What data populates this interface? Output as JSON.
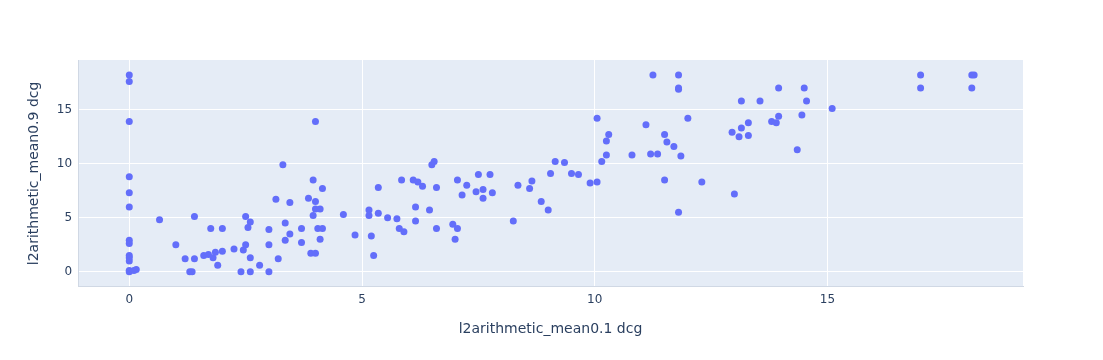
{
  "chart_data": {
    "type": "scatter",
    "x_label": "l2arithmetic_mean0.1 dcg",
    "y_label": "l2arithmetic_mean0.9 dcg",
    "color": "#636efa",
    "marker": "circle",
    "grid": true,
    "xlim": [
      -1.1,
      19.2
    ],
    "ylim": [
      -1.4,
      19.6
    ],
    "xticks": [
      0,
      5,
      10,
      15
    ],
    "yticks": [
      0,
      5,
      10,
      15
    ],
    "x": [
      0,
      0,
      0,
      0,
      0,
      0,
      0,
      0,
      0,
      0,
      0,
      0,
      0,
      0.15,
      0.1,
      0.65,
      1.0,
      1.2,
      1.3,
      1.35,
      1.4,
      1.4,
      1.6,
      1.7,
      1.75,
      1.8,
      1.85,
      1.9,
      2.0,
      2.0,
      2.25,
      2.4,
      2.45,
      2.5,
      2.5,
      2.55,
      2.6,
      2.6,
      2.6,
      2.8,
      3.0,
      3.0,
      3.0,
      3.15,
      3.2,
      3.3,
      3.35,
      3.35,
      3.45,
      3.45,
      3.7,
      3.7,
      3.85,
      3.9,
      3.95,
      3.95,
      4.0,
      4.0,
      4.0,
      4.0,
      4.05,
      4.1,
      4.1,
      4.15,
      4.15,
      4.6,
      4.85,
      5.15,
      5.15,
      5.2,
      5.25,
      5.35,
      5.35,
      5.55,
      5.75,
      5.8,
      5.85,
      5.9,
      6.1,
      6.15,
      6.15,
      6.2,
      6.3,
      6.45,
      6.5,
      6.55,
      6.6,
      6.6,
      6.95,
      7.0,
      7.05,
      7.05,
      7.15,
      7.25,
      7.45,
      7.5,
      7.6,
      7.6,
      7.75,
      7.8,
      8.25,
      8.35,
      8.6,
      8.65,
      8.85,
      9.0,
      9.05,
      9.15,
      9.35,
      9.5,
      9.65,
      9.9,
      10.05,
      10.05,
      10.15,
      10.25,
      10.25,
      10.3,
      10.8,
      11.1,
      11.2,
      11.25,
      11.35,
      11.5,
      11.5,
      11.55,
      11.7,
      11.8,
      11.8,
      11.8,
      11.8,
      11.85,
      12.0,
      12.3,
      12.95,
      13.0,
      13.1,
      13.15,
      13.15,
      13.3,
      13.3,
      13.55,
      13.8,
      13.9,
      13.95,
      13.95,
      14.35,
      14.45,
      14.5,
      14.55,
      15.1,
      17.0,
      17.0,
      18.1,
      18.15,
      18.1
    ],
    "values": [
      18.2,
      17.6,
      13.9,
      8.8,
      7.3,
      6.0,
      2.9,
      2.6,
      1.5,
      1.3,
      1.0,
      0.1,
      0.0,
      0.2,
      0.1,
      4.8,
      2.5,
      1.2,
      0.0,
      0.0,
      5.1,
      1.2,
      1.5,
      1.6,
      4.0,
      1.3,
      1.8,
      0.6,
      1.9,
      4.0,
      2.1,
      0.0,
      2.0,
      2.5,
      5.1,
      4.1,
      4.6,
      0.0,
      1.3,
      0.6,
      3.9,
      0.0,
      2.5,
      6.7,
      1.2,
      9.9,
      2.9,
      4.5,
      6.4,
      3.5,
      4.0,
      2.7,
      6.8,
      1.7,
      8.5,
      5.2,
      1.7,
      13.9,
      6.5,
      5.8,
      4.0,
      3.0,
      5.8,
      7.7,
      4.0,
      5.3,
      3.4,
      5.7,
      5.2,
      3.3,
      1.5,
      7.8,
      5.4,
      5.0,
      4.9,
      4.0,
      8.5,
      3.7,
      8.5,
      6.0,
      4.7,
      8.3,
      7.9,
      5.7,
      9.9,
      10.2,
      7.8,
      4.0,
      4.4,
      3.0,
      4.0,
      8.5,
      7.1,
      8.0,
      7.4,
      9.0,
      7.6,
      6.8,
      9.0,
      7.3,
      4.7,
      8.0,
      7.7,
      8.4,
      6.5,
      5.7,
      9.1,
      10.2,
      10.1,
      9.1,
      9.0,
      8.2,
      8.3,
      14.2,
      10.2,
      10.8,
      12.1,
      12.7,
      10.8,
      13.6,
      10.9,
      18.2,
      10.9,
      12.7,
      8.5,
      12.0,
      11.6,
      5.5,
      18.2,
      17.0,
      16.9,
      10.7,
      14.2,
      8.3,
      12.9,
      7.2,
      12.5,
      13.3,
      15.8,
      12.6,
      13.8,
      15.8,
      13.9,
      13.8,
      14.4,
      17.0,
      11.3,
      14.5,
      17.0,
      15.8,
      15.1,
      18.2,
      17.0,
      18.2,
      18.2,
      17.0
    ]
  }
}
